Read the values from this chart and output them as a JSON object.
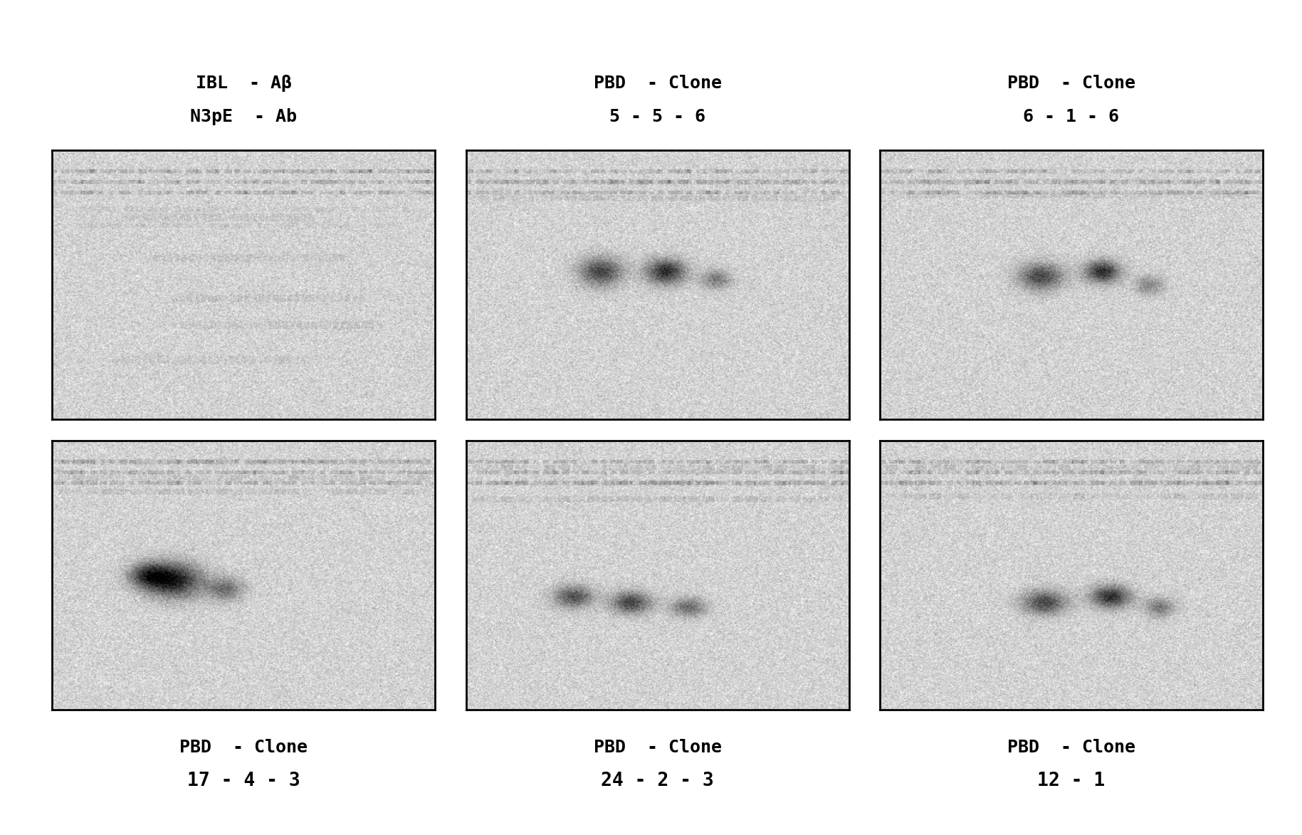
{
  "background_color": "#ffffff",
  "figure_width": 18.29,
  "figure_height": 11.73,
  "dpi": 100,
  "panel_labels_top": [
    {
      "line1": "IBL  - Aβ",
      "line2": "N3pE  - Ab",
      "line3": ""
    },
    {
      "line1": "PBD  - Clone",
      "line2": "5 - 5 - 6",
      "line3": ""
    },
    {
      "line1": "PBD  - Clone",
      "line2": "6 - 1 - 6",
      "line3": ""
    }
  ],
  "panel_labels_bottom": [
    {
      "line1": "PBD  - Clone",
      "line2": "17 - 4 - 3"
    },
    {
      "line1": "PBD  - Clone",
      "line2": "24 - 2 - 3"
    },
    {
      "line1": "PBD  - Clone",
      "line2": "12 - 1"
    }
  ],
  "panel_border_color": "#000000",
  "panel_bg_base": 210,
  "label_fontsize": 18,
  "label_bold": true,
  "grid_rows": 2,
  "grid_cols": 3
}
